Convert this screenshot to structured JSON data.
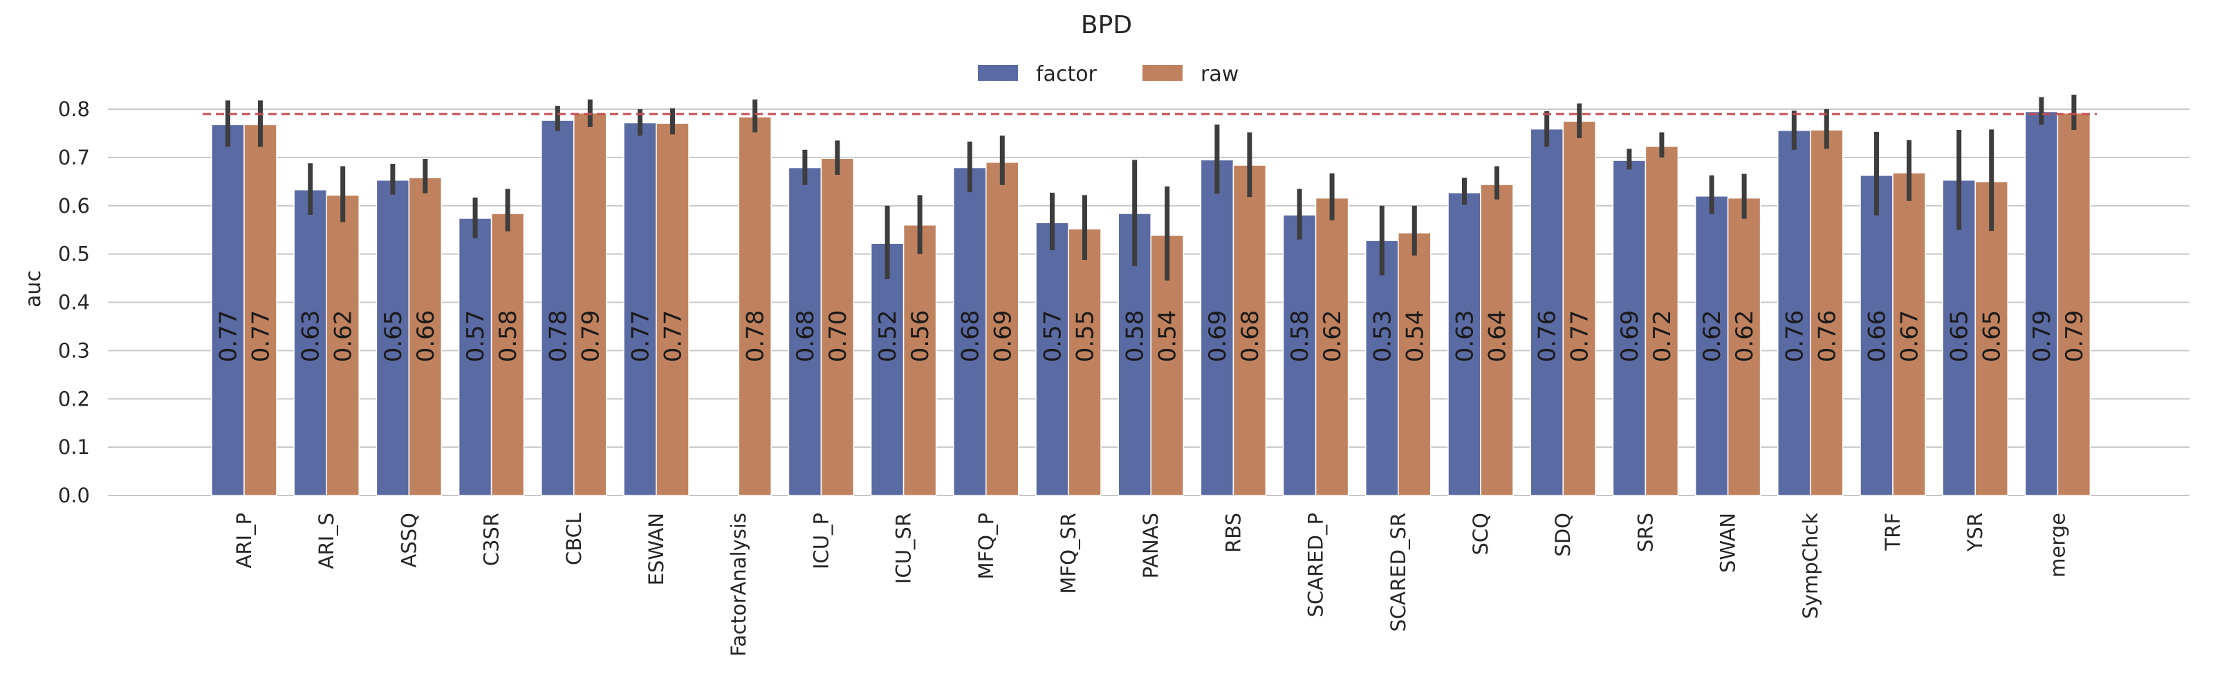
{
  "chart_data": {
    "type": "bar",
    "title": "BPD",
    "xlabel": "",
    "ylabel": "auc",
    "ylim": [
      0,
      0.8
    ],
    "yticks": [
      "0.0",
      "0.1",
      "0.2",
      "0.3",
      "0.4",
      "0.5",
      "0.6",
      "0.7",
      "0.8"
    ],
    "grid": true,
    "legend": {
      "placement": "top-center"
    },
    "reference_line": {
      "value": 0.79,
      "style": "dashed",
      "color": "#c44e52"
    },
    "categories": [
      "ARI_P",
      "ARI_S",
      "ASSQ",
      "C3SR",
      "CBCL",
      "ESWAN",
      "FactorAnalysis",
      "ICU_P",
      "ICU_SR",
      "MFQ_P",
      "MFQ_SR",
      "PANAS",
      "RBS",
      "SCARED_P",
      "SCARED_SR",
      "SCQ",
      "SDQ",
      "SRS",
      "SWAN",
      "SympChck",
      "TRF",
      "YSR",
      "merge"
    ],
    "series": [
      {
        "name": "factor",
        "color": "#5a6aa3",
        "values": [
          0.768,
          0.633,
          0.653,
          0.574,
          0.777,
          0.772,
          null,
          0.679,
          0.522,
          0.679,
          0.565,
          0.584,
          0.695,
          0.581,
          0.528,
          0.627,
          0.759,
          0.694,
          0.62,
          0.756,
          0.663,
          0.653,
          0.795
        ],
        "labels": [
          "0.77",
          "0.63",
          "0.65",
          "0.57",
          "0.78",
          "0.77",
          "",
          "0.68",
          "0.52",
          "0.68",
          "0.57",
          "0.58",
          "0.69",
          "0.58",
          "0.53",
          "0.63",
          "0.76",
          "0.69",
          "0.62",
          "0.76",
          "0.66",
          "0.65",
          "0.79"
        ],
        "err_low": [
          0.722,
          0.581,
          0.623,
          0.533,
          0.755,
          0.745,
          null,
          0.643,
          0.448,
          0.628,
          0.508,
          0.475,
          0.625,
          0.53,
          0.456,
          0.602,
          0.722,
          0.675,
          0.583,
          0.716,
          0.58,
          0.55,
          0.768
        ],
        "err_high": [
          0.818,
          0.688,
          0.687,
          0.617,
          0.807,
          0.8,
          null,
          0.716,
          0.6,
          0.733,
          0.627,
          0.695,
          0.768,
          0.635,
          0.6,
          0.658,
          0.796,
          0.718,
          0.663,
          0.797,
          0.753,
          0.757,
          0.825
        ]
      },
      {
        "name": "raw",
        "color": "#c0825e",
        "values": [
          0.768,
          0.622,
          0.658,
          0.584,
          0.792,
          0.771,
          0.784,
          0.698,
          0.56,
          0.69,
          0.552,
          0.539,
          0.684,
          0.616,
          0.544,
          0.644,
          0.775,
          0.723,
          0.616,
          0.757,
          0.668,
          0.65,
          0.792
        ],
        "labels": [
          "0.77",
          "0.62",
          "0.66",
          "0.58",
          "0.79",
          "0.77",
          "0.78",
          "0.70",
          "0.56",
          "0.69",
          "0.55",
          "0.54",
          "0.68",
          "0.62",
          "0.54",
          "0.64",
          "0.77",
          "0.72",
          "0.62",
          "0.76",
          "0.67",
          "0.65",
          "0.79"
        ],
        "err_low": [
          0.722,
          0.566,
          0.626,
          0.547,
          0.763,
          0.748,
          0.752,
          0.664,
          0.5,
          0.643,
          0.488,
          0.445,
          0.618,
          0.57,
          0.497,
          0.613,
          0.74,
          0.7,
          0.573,
          0.718,
          0.61,
          0.548,
          0.757
        ],
        "err_high": [
          0.818,
          0.682,
          0.697,
          0.635,
          0.82,
          0.802,
          0.82,
          0.735,
          0.622,
          0.745,
          0.622,
          0.64,
          0.752,
          0.667,
          0.6,
          0.682,
          0.812,
          0.752,
          0.666,
          0.8,
          0.736,
          0.758,
          0.83
        ]
      }
    ]
  }
}
